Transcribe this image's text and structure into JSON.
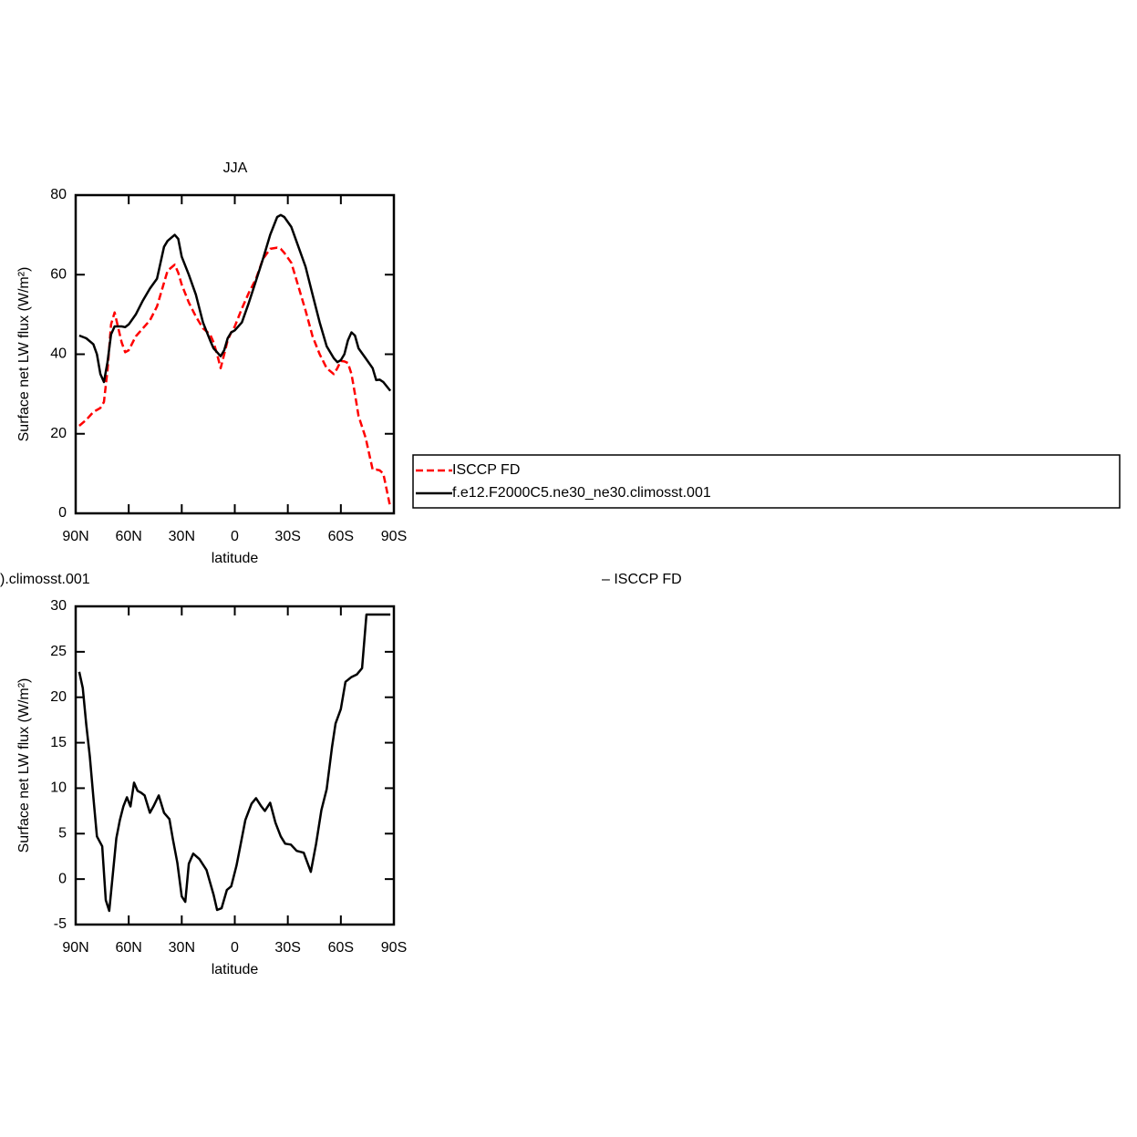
{
  "chart_data": [
    {
      "type": "line",
      "title": "JJA",
      "ylabel": "Surface net LW flux (W/m²)",
      "xlabel": "latitude",
      "x": [
        88,
        84,
        80,
        78,
        76,
        74,
        72,
        70,
        68,
        64,
        62,
        60,
        56,
        52,
        48,
        44,
        40,
        38,
        34,
        32,
        30,
        26,
        22,
        18,
        14,
        12,
        10,
        8,
        6,
        4,
        2,
        0,
        -4,
        -8,
        -12,
        -16,
        -20,
        -24,
        -26,
        -28,
        -32,
        -36,
        -40,
        -44,
        -48,
        -52,
        -56,
        -58,
        -60,
        -62,
        -64,
        -66,
        -68,
        -70,
        -74,
        -78,
        -80,
        -82,
        -84,
        -88
      ],
      "series": [
        {
          "name": "ISCCP FD",
          "color": "#ff0000",
          "dashed": true,
          "values": [
            22,
            23.5,
            25.5,
            26,
            26.5,
            28,
            36,
            47.5,
            50.5,
            43,
            40.5,
            41,
            44.5,
            46.5,
            48.5,
            52,
            58,
            61,
            62.5,
            60.5,
            57.5,
            53,
            49.5,
            46.5,
            45,
            43,
            40,
            36.5,
            40,
            43.5,
            45.5,
            47,
            51.5,
            55.5,
            59,
            64,
            66.5,
            66.8,
            66.5,
            65.5,
            63,
            57,
            51,
            44.5,
            40,
            36.5,
            35,
            36.5,
            38.3,
            38.2,
            37.8,
            35,
            30,
            24.5,
            19,
            11,
            11,
            10.8,
            10,
            1.5
          ]
        },
        {
          "name": "f.e12.F2000C5.ne30_ne30.climosst.001",
          "color": "#000000",
          "dashed": false,
          "values": [
            44.7,
            44,
            42.5,
            40,
            35,
            33,
            38,
            45,
            47,
            47,
            46.8,
            47.5,
            50,
            53.5,
            56.5,
            59,
            67,
            68.5,
            70,
            69,
            64.5,
            60,
            55,
            48,
            43.5,
            41.5,
            40.5,
            39.5,
            41,
            44,
            45.5,
            46,
            48,
            53,
            58.5,
            64,
            70,
            74.5,
            75,
            74.5,
            72,
            67,
            62,
            55,
            48,
            42,
            39,
            38,
            38.5,
            40,
            43.5,
            45.5,
            44.7,
            41.5,
            39,
            36.5,
            33.5,
            33.6,
            33,
            30.8
          ]
        }
      ],
      "xlim": [
        90,
        -90
      ],
      "xticks": [
        {
          "value": 90,
          "label": "90N"
        },
        {
          "value": 60,
          "label": "60N"
        },
        {
          "value": 30,
          "label": "30N"
        },
        0,
        {
          "value": -30,
          "label": "30S"
        },
        {
          "value": -60,
          "label": "60S"
        },
        {
          "value": -90,
          "label": "90S"
        }
      ],
      "ylim": [
        0,
        80
      ],
      "yticks": [
        0,
        20,
        40,
        60,
        80
      ],
      "legend": "outside-right"
    },
    {
      "type": "line",
      "title": ").climosst.001",
      "subtitle": "– ISCCP FD",
      "ylabel": "Surface net LW flux (W/m²)",
      "xlabel": "latitude",
      "x": [
        88,
        86,
        84,
        82,
        80,
        78,
        75,
        73,
        71,
        69,
        67,
        65,
        63,
        61,
        59,
        57,
        55,
        53,
        51,
        48,
        46,
        43,
        40,
        37,
        35,
        32.5,
        30,
        28,
        26,
        23.5,
        20,
        16,
        12,
        10,
        7.5,
        4.5,
        2,
        -1,
        -3,
        -6,
        -9.5,
        -12,
        -15,
        -17,
        -20,
        -23,
        -26,
        -28.5,
        -31.7,
        -35,
        -39,
        -43,
        -46,
        -49,
        -52,
        -55,
        -57,
        -60,
        -62.6,
        -65.8,
        -69,
        -72,
        -74.5,
        -76.6,
        -79,
        -82,
        -85,
        -88
      ],
      "series": [
        {
          "name": "f.e12.F2000C5.ne30_ne30.climosst.001",
          "color": "#000000",
          "dashed": false,
          "values": [
            22.8,
            21,
            17,
            13.5,
            9,
            4.7,
            3.6,
            -2.3,
            -3.5,
            0.5,
            4.5,
            6.5,
            8,
            9,
            8,
            10.6,
            9.7,
            9.5,
            9.2,
            7.3,
            8,
            9.2,
            7.3,
            6.6,
            4.4,
            1.8,
            -1.9,
            -2.5,
            1.7,
            2.8,
            2.2,
            1,
            -1.7,
            -3.4,
            -3.2,
            -1.2,
            -0.8,
            1.5,
            3.5,
            6.5,
            8.3,
            8.9,
            8,
            7.5,
            8.4,
            6.2,
            4.7,
            3.9,
            3.8,
            3.1,
            2.9,
            0.8,
            3.9,
            7.6,
            9.9,
            14.5,
            17.1,
            18.7,
            21.7,
            22.2,
            22.5,
            23.2,
            29.1,
            29.1,
            29.1,
            29.1,
            29.1,
            29.1
          ]
        }
      ],
      "xlim": [
        90,
        -90
      ],
      "xticks": [
        {
          "value": 90,
          "label": "90N"
        },
        {
          "value": 60,
          "label": "60N"
        },
        {
          "value": 30,
          "label": "30N"
        },
        0,
        {
          "value": -30,
          "label": "30S"
        },
        {
          "value": -60,
          "label": "60S"
        },
        {
          "value": -90,
          "label": "90S"
        }
      ],
      "ylim": [
        -5,
        30
      ],
      "yticks": [
        -5,
        0,
        5,
        10,
        15,
        20,
        25,
        30
      ]
    }
  ]
}
